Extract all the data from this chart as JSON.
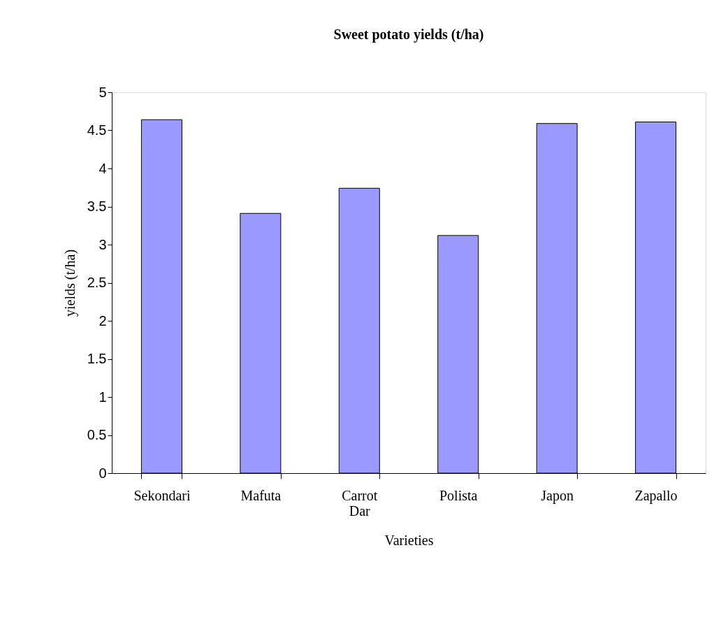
{
  "chart_data": {
    "type": "bar",
    "title": "Sweet potato yields (t/ha)",
    "xlabel": "Varieties",
    "ylabel": "yields (t/ha)",
    "categories": [
      "Sekondari",
      "Mafuta",
      "Carrot Dar",
      "Polista",
      "Japon",
      "Zapallo"
    ],
    "series": [
      {
        "color": "#9999ff",
        "values": [
          4.64,
          3.41,
          3.74,
          3.12,
          4.59,
          4.61
        ]
      }
    ],
    "ylim": [
      0,
      5
    ],
    "yticks": [
      0,
      0.5,
      1,
      1.5,
      2,
      2.5,
      3,
      3.5,
      4,
      4.5,
      5
    ],
    "grid": false,
    "legend": false
  }
}
